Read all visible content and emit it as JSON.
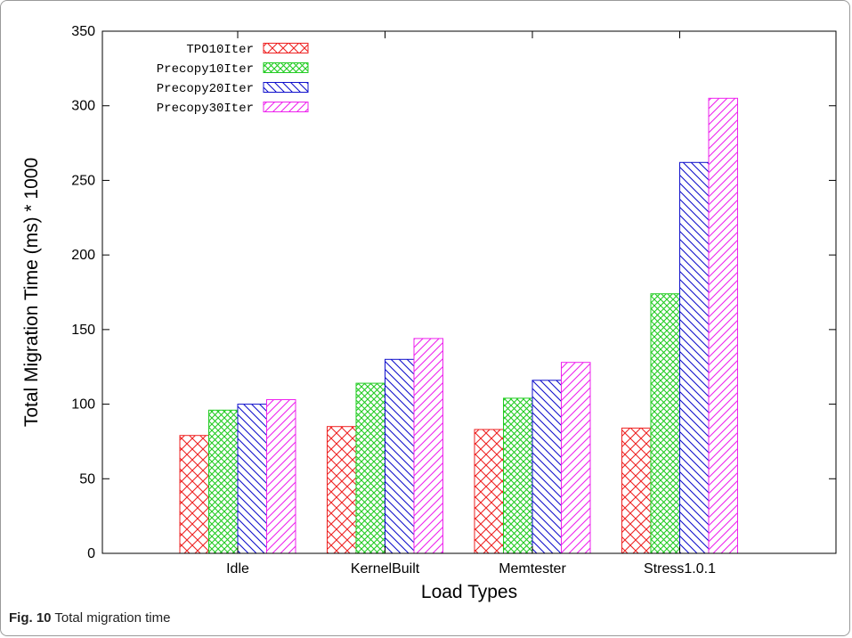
{
  "caption": {
    "number": "Fig. 10",
    "text": "Total migration time"
  },
  "chart_data": {
    "type": "bar",
    "title": "",
    "xlabel": "Load Types",
    "ylabel": "Total Migration Time (ms) * 1000",
    "ylim": [
      0,
      350
    ],
    "yticks": [
      "0",
      "50",
      "100",
      "150",
      "200",
      "250",
      "300",
      "350"
    ],
    "categories": [
      "Idle",
      "KernelBuilt",
      "Memtester",
      "Stress1.0.1"
    ],
    "series": [
      {
        "name": "TPO10Iter",
        "color": "#ee2222",
        "pattern": "crosshatch",
        "values": [
          79,
          85,
          83,
          84
        ]
      },
      {
        "name": "Precopy10Iter",
        "color": "#22cc22",
        "pattern": "fine-crosshatch",
        "values": [
          96,
          114,
          104,
          174
        ]
      },
      {
        "name": "Precopy20Iter",
        "color": "#1111cc",
        "pattern": "backslash-hatch",
        "values": [
          100,
          130,
          116,
          262
        ]
      },
      {
        "name": "Precopy30Iter",
        "color": "#ee22ee",
        "pattern": "slash-hatch",
        "values": [
          103,
          144,
          128,
          305
        ]
      }
    ],
    "grid": false,
    "legend_position": "top-left"
  }
}
